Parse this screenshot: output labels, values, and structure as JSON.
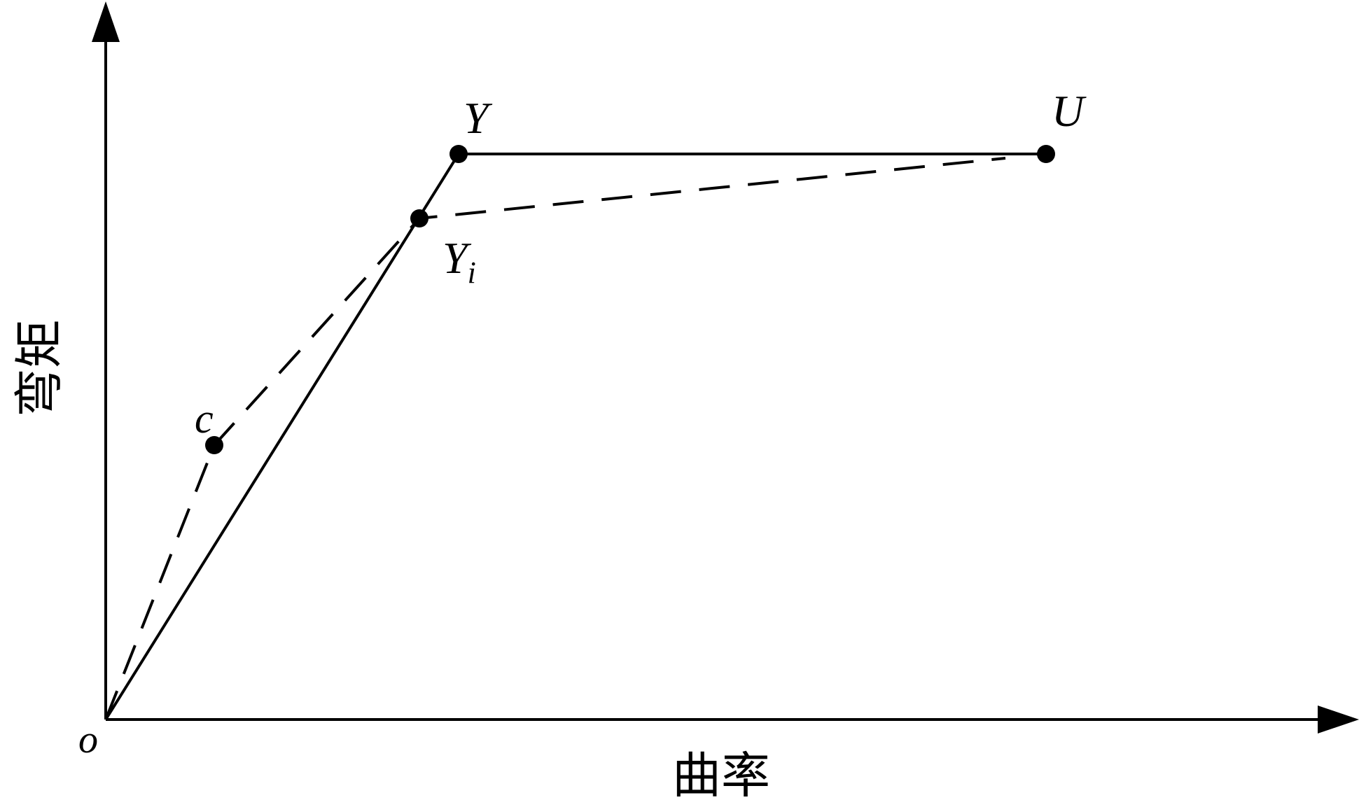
{
  "diagram": {
    "axes": {
      "x_label": "曲率",
      "y_label": "弯矩",
      "origin_label": "o"
    },
    "points": {
      "Y": {
        "label": "Y"
      },
      "U": {
        "label": "U"
      },
      "Yi": {
        "label": "Y",
        "subscript": "i"
      },
      "c": {
        "label": "c"
      }
    },
    "colors": {
      "line": "#000000",
      "background": "#ffffff"
    }
  }
}
